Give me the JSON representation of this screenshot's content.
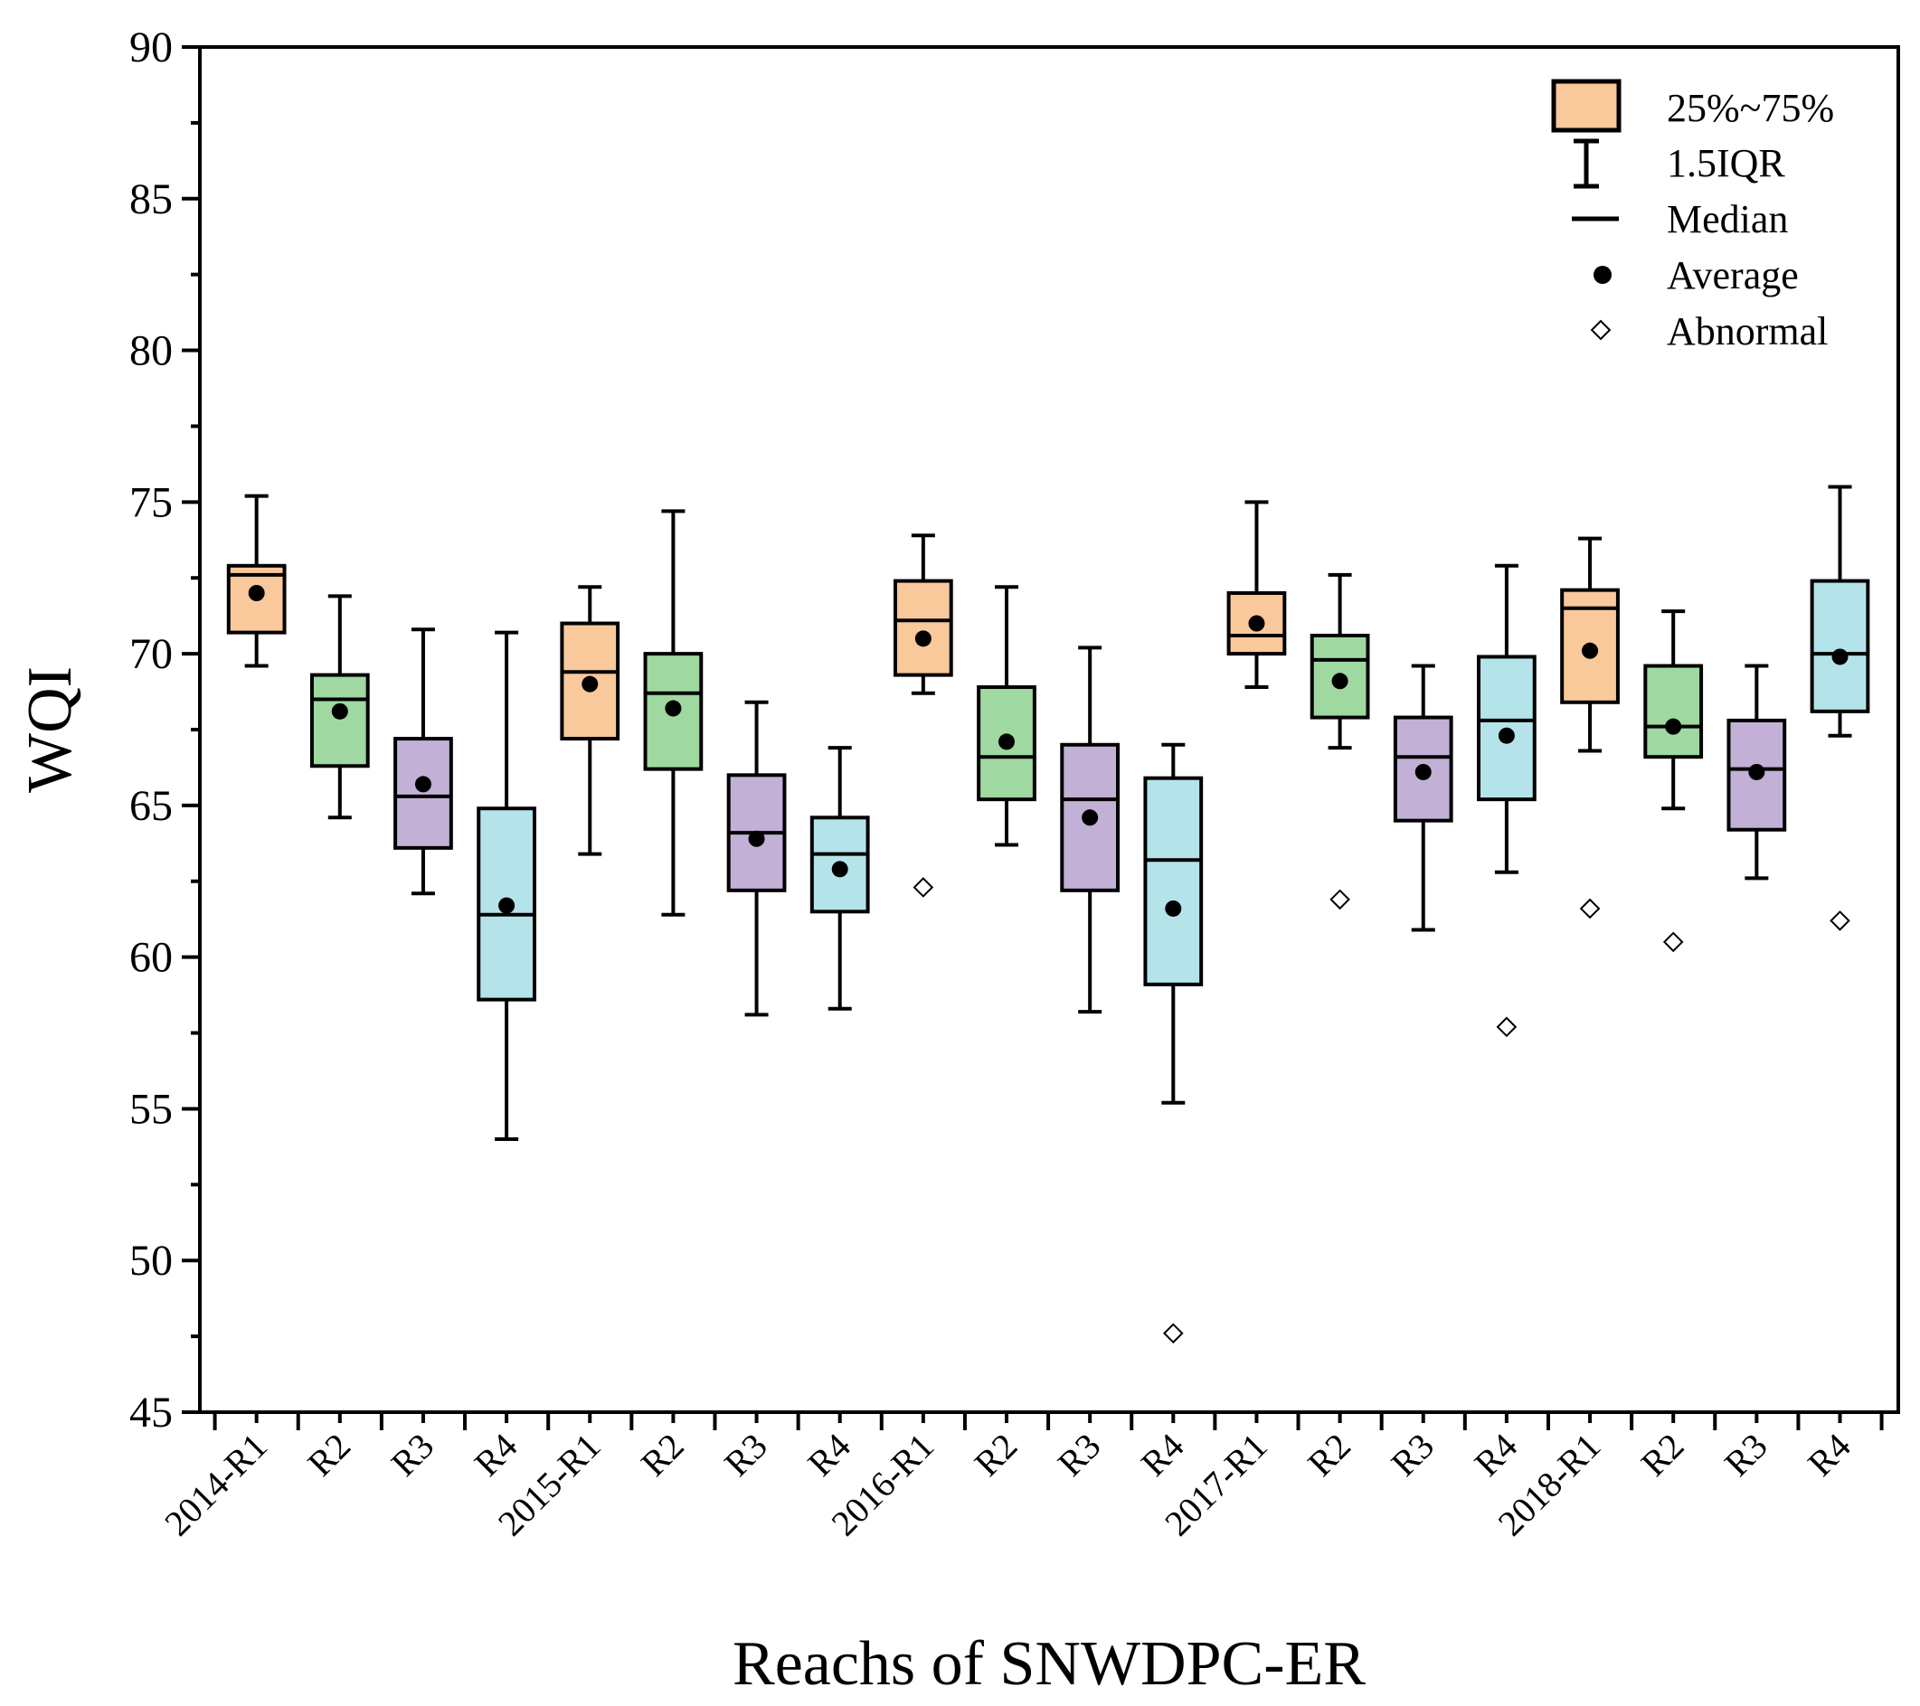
{
  "chart_data": {
    "type": "box",
    "xlabel": "Reachs of SNWDPC-ER",
    "ylabel": "WQI",
    "ylim": [
      45,
      90
    ],
    "yticks": [
      45,
      50,
      55,
      60,
      65,
      70,
      75,
      80,
      85,
      90
    ],
    "categories": [
      "2014-R1",
      "R2",
      "R3",
      "R4",
      "2015-R1",
      "R2",
      "R3",
      "R4",
      "2016-R1",
      "R2",
      "R3",
      "R4",
      "2017-R1",
      "R2",
      "R3",
      "R4",
      "2018-R1",
      "R2",
      "R3",
      "R4"
    ],
    "colors": {
      "R1": "#f9c89b",
      "R2": "#9fd8a1",
      "R3": "#c2b0d6",
      "R4": "#b4e4ea",
      "stroke": "#000000",
      "abnormal_fill": "#ffffff"
    },
    "boxes": [
      {
        "group": "R1",
        "whisker_low": 69.6,
        "q1": 70.7,
        "median": 72.6,
        "q3": 72.9,
        "whisker_high": 75.2,
        "mean": 72.0,
        "outliers": []
      },
      {
        "group": "R2",
        "whisker_low": 64.6,
        "q1": 66.3,
        "median": 68.5,
        "q3": 69.3,
        "whisker_high": 71.9,
        "mean": 68.1,
        "outliers": []
      },
      {
        "group": "R3",
        "whisker_low": 62.1,
        "q1": 63.6,
        "median": 65.3,
        "q3": 67.2,
        "whisker_high": 70.8,
        "mean": 65.7,
        "outliers": []
      },
      {
        "group": "R4",
        "whisker_low": 54.0,
        "q1": 58.6,
        "median": 61.4,
        "q3": 64.9,
        "whisker_high": 70.7,
        "mean": 61.7,
        "outliers": []
      },
      {
        "group": "R1",
        "whisker_low": 63.4,
        "q1": 67.2,
        "median": 69.4,
        "q3": 71.0,
        "whisker_high": 72.2,
        "mean": 69.0,
        "outliers": []
      },
      {
        "group": "R2",
        "whisker_low": 61.4,
        "q1": 66.2,
        "median": 68.7,
        "q3": 70.0,
        "whisker_high": 74.7,
        "mean": 68.2,
        "outliers": []
      },
      {
        "group": "R3",
        "whisker_low": 58.1,
        "q1": 62.2,
        "median": 64.1,
        "q3": 66.0,
        "whisker_high": 68.4,
        "mean": 63.9,
        "outliers": []
      },
      {
        "group": "R4",
        "whisker_low": 58.3,
        "q1": 61.5,
        "median": 63.4,
        "q3": 64.6,
        "whisker_high": 66.9,
        "mean": 62.9,
        "outliers": []
      },
      {
        "group": "R1",
        "whisker_low": 68.7,
        "q1": 69.3,
        "median": 71.1,
        "q3": 72.4,
        "whisker_high": 73.9,
        "mean": 70.5,
        "outliers": [
          62.3
        ]
      },
      {
        "group": "R2",
        "whisker_low": 63.7,
        "q1": 65.2,
        "median": 66.6,
        "q3": 68.9,
        "whisker_high": 72.2,
        "mean": 67.1,
        "outliers": []
      },
      {
        "group": "R3",
        "whisker_low": 58.2,
        "q1": 62.2,
        "median": 65.2,
        "q3": 67.0,
        "whisker_high": 70.2,
        "mean": 64.6,
        "outliers": []
      },
      {
        "group": "R4",
        "whisker_low": 55.2,
        "q1": 59.1,
        "median": 63.2,
        "q3": 65.9,
        "whisker_high": 67.0,
        "mean": 61.6,
        "outliers": [
          47.6
        ]
      },
      {
        "group": "R1",
        "whisker_low": 68.9,
        "q1": 70.0,
        "median": 70.6,
        "q3": 72.0,
        "whisker_high": 75.0,
        "mean": 71.0,
        "outliers": []
      },
      {
        "group": "R2",
        "whisker_low": 66.9,
        "q1": 67.9,
        "median": 69.8,
        "q3": 70.6,
        "whisker_high": 72.6,
        "mean": 69.1,
        "outliers": [
          61.9
        ]
      },
      {
        "group": "R3",
        "whisker_low": 60.9,
        "q1": 64.5,
        "median": 66.6,
        "q3": 67.9,
        "whisker_high": 69.6,
        "mean": 66.1,
        "outliers": []
      },
      {
        "group": "R4",
        "whisker_low": 62.8,
        "q1": 65.2,
        "median": 67.8,
        "q3": 69.9,
        "whisker_high": 72.9,
        "mean": 67.3,
        "outliers": [
          57.7
        ]
      },
      {
        "group": "R1",
        "whisker_low": 66.8,
        "q1": 68.4,
        "median": 71.5,
        "q3": 72.1,
        "whisker_high": 73.8,
        "mean": 70.1,
        "outliers": [
          61.6
        ]
      },
      {
        "group": "R2",
        "whisker_low": 64.9,
        "q1": 66.6,
        "median": 67.6,
        "q3": 69.6,
        "whisker_high": 71.4,
        "mean": 67.6,
        "outliers": [
          60.5
        ]
      },
      {
        "group": "R3",
        "whisker_low": 62.6,
        "q1": 64.2,
        "median": 66.2,
        "q3": 67.8,
        "whisker_high": 69.6,
        "mean": 66.1,
        "outliers": []
      },
      {
        "group": "R4",
        "whisker_low": 67.3,
        "q1": 68.1,
        "median": 70.0,
        "q3": 72.4,
        "whisker_high": 75.5,
        "mean": 69.9,
        "outliers": [
          61.2
        ]
      }
    ],
    "legend": {
      "position": "top-right",
      "items": [
        "25%~75%",
        "1.5IQR",
        "Median",
        "Average",
        "Abnormal"
      ]
    }
  }
}
